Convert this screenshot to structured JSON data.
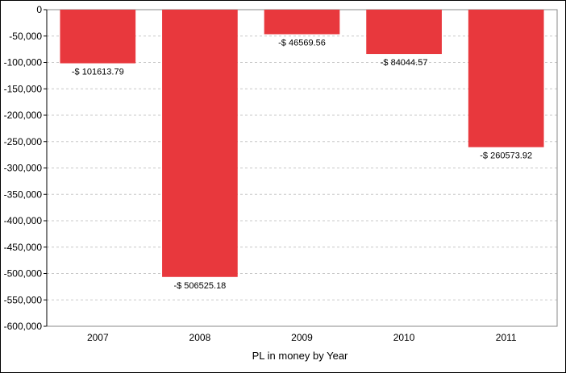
{
  "chart_data": {
    "type": "bar",
    "title": "",
    "xlabel": "PL in money by Year",
    "ylabel": "",
    "categories": [
      "2007",
      "2008",
      "2009",
      "2010",
      "2011"
    ],
    "values": [
      -101613.79,
      -506525.18,
      -46569.56,
      -84044.57,
      -260573.92
    ],
    "data_labels": [
      "-$ 101613.79",
      "-$ 506525.18",
      "-$ 46569.56",
      "-$ 84044.57",
      "-$ 260573.92"
    ],
    "ylim": [
      -600000,
      0
    ],
    "yticks": [
      0,
      -50000,
      -100000,
      -150000,
      -200000,
      -250000,
      -300000,
      -350000,
      -400000,
      -450000,
      -500000,
      -550000,
      -600000
    ],
    "ytick_labels": [
      "0",
      "-50,000",
      "-100,000",
      "-150,000",
      "-200,000",
      "-250,000",
      "-300,000",
      "-350,000",
      "-400,000",
      "-450,000",
      "-500,000",
      "-550,000",
      "-600,000"
    ],
    "grid": true,
    "legend": "none",
    "bar_color": "#e8383d",
    "grid_color": "#c8c8c8"
  }
}
